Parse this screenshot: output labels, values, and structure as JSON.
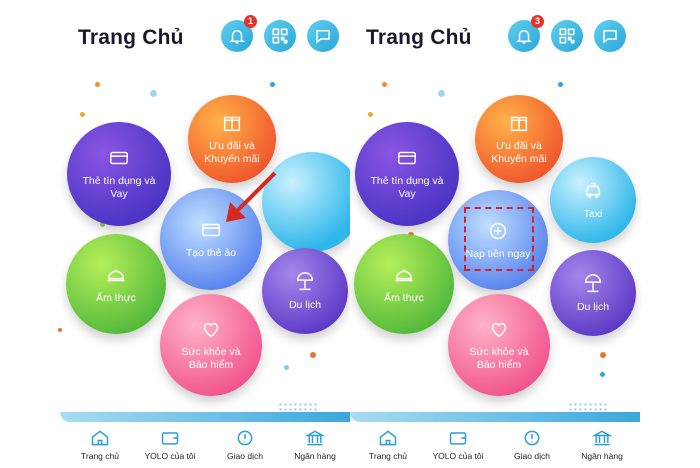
{
  "screens": [
    {
      "title": "Trang Chủ",
      "notification_count": "1",
      "bubbles": {
        "credit": "Thẻ tín dụng và Vay",
        "offers": "Ưu đãi và Khuyến mãi",
        "virtual": "Tạo thẻ ảo",
        "food": "Ẩm thực",
        "travel": "Du lịch",
        "health": "Sức khỏe và Bảo hiểm"
      },
      "tabs": [
        "Trang chủ",
        "YOLO của tôi",
        "Giao dịch",
        "Ngân hàng"
      ]
    },
    {
      "title": "Trang Chủ",
      "notification_count": "3",
      "bubbles": {
        "credit": "Thẻ tín dụng và Vay",
        "offers": "Ưu đãi và Khuyến mãi",
        "taxi": "Taxi",
        "topup": "Nạp tiền ngay",
        "food": "Ẩm thực",
        "travel": "Du lịch",
        "health": "Sức khỏe và Bảo hiểm"
      },
      "tabs": [
        "Trang chủ",
        "YOLO của tôi",
        "Giao dịch",
        "Ngân hàng"
      ]
    }
  ],
  "icons": {
    "header": [
      "bell-icon",
      "qr-code-icon",
      "chat-bubble-icon"
    ],
    "tabs": [
      "home-icon",
      "wallet-icon",
      "transaction-icon",
      "bank-icon"
    ]
  },
  "colors": {
    "header_button": "#2aa6d8",
    "badge": "#e8322c",
    "highlight_border": "#d4202c",
    "arrow": "#d42a20"
  }
}
